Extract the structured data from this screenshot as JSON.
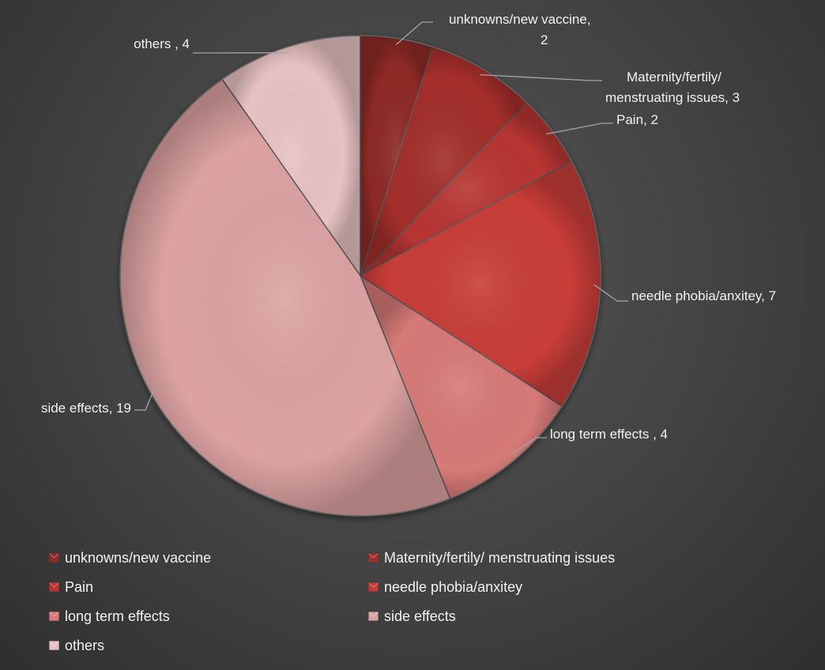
{
  "chart_data": {
    "type": "pie",
    "title": "",
    "slices": [
      {
        "label": "unknowns/new vaccine",
        "value": 2,
        "data_label": "unknowns/new vaccine,\n2",
        "color": "#8e2a28"
      },
      {
        "label": "Maternity/fertily/ menstruating issues",
        "value": 3,
        "data_label": "Maternity/fertily/\nmenstruating issues, 3",
        "color": "#a32e2c"
      },
      {
        "label": "Pain",
        "value": 2,
        "data_label": "Pain, 2",
        "color": "#b83532"
      },
      {
        "label": "needle phobia/anxitey",
        "value": 7,
        "data_label": "needle phobia/anxitey, 7",
        "color": "#c83c38"
      },
      {
        "label": "long term effects",
        "value": 4,
        "data_label": "long term effects , 4",
        "color": "#d67a78"
      },
      {
        "label": "side effects",
        "value": 19,
        "data_label": "side effects, 19",
        "color": "#dca2a2"
      },
      {
        "label": "others",
        "value": 4,
        "data_label": "others , 4",
        "color": "#e8c2c3"
      }
    ],
    "start_angle_deg": 0,
    "direction": "clockwise",
    "legend_position": "bottom",
    "legend_columns": 2,
    "background": "#464646"
  }
}
